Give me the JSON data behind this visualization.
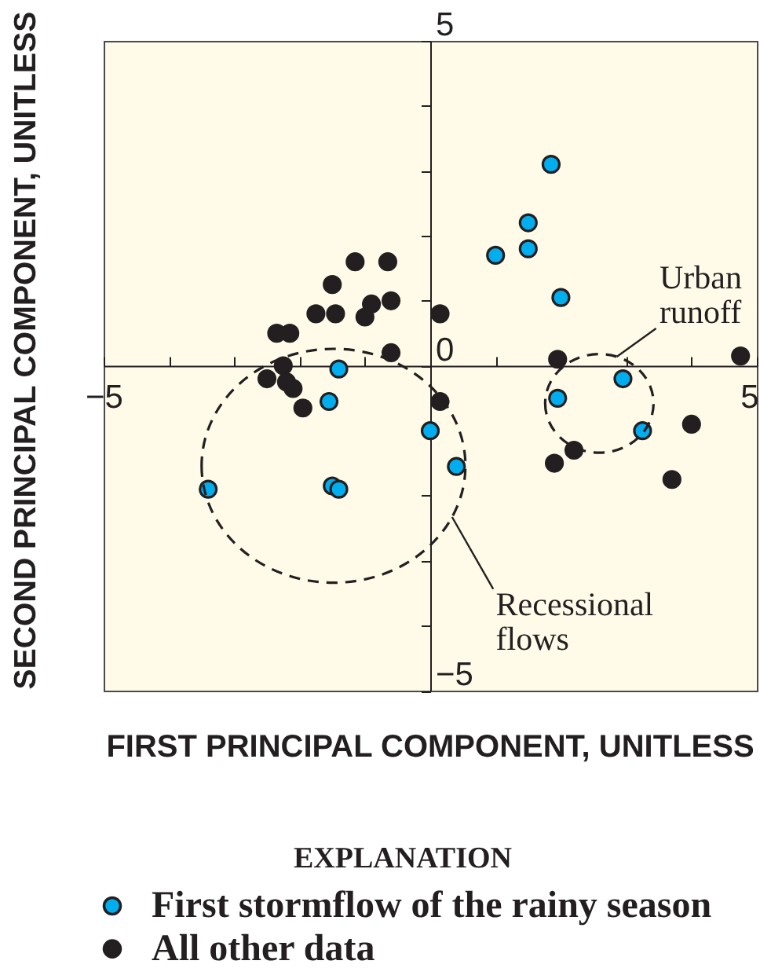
{
  "chart_data": {
    "type": "scatter",
    "xlabel": "FIRST PRINCIPAL COMPONENT, UNITLESS",
    "ylabel": "SECOND PRINCIPAL COMPONENT, UNITLESS",
    "legend_title": "EXPLANATION",
    "legend": "bottom",
    "marker": "circle",
    "xlim": [
      -5,
      5
    ],
    "ylim": [
      -5,
      5
    ],
    "xticks": [
      -5,
      {
        "value": -4,
        "label": null
      },
      {
        "value": -3,
        "label": null
      },
      {
        "value": -2,
        "label": null
      },
      {
        "value": -1,
        "label": null
      },
      {
        "value": 1,
        "label": null
      },
      {
        "value": 2,
        "label": null
      },
      {
        "value": 3,
        "label": null
      },
      {
        "value": 4,
        "label": null
      },
      5
    ],
    "yticks": [
      -5,
      {
        "value": -4,
        "label": null
      },
      {
        "value": -3,
        "label": null
      },
      {
        "value": -2,
        "label": null
      },
      {
        "value": -1,
        "label": null
      },
      0,
      {
        "value": 1,
        "label": null
      },
      {
        "value": 2,
        "label": null
      },
      {
        "value": 3,
        "label": null
      },
      {
        "value": 4,
        "label": null
      },
      5
    ],
    "series": [
      {
        "name": "First stormflow of the rainy season",
        "color": "#00aeef",
        "x": [
          -1.4,
          -1.55,
          0.0,
          -3.4,
          -1.5,
          -1.4,
          0.4,
          2.95,
          1.95,
          3.25,
          1.85,
          1.5,
          1.5,
          1.0,
          2.0
        ],
        "values": [
          -0.05,
          -0.55,
          -1.0,
          -1.9,
          -1.85,
          -1.9,
          -1.55,
          -0.2,
          -0.5,
          -1.0,
          3.1,
          2.2,
          1.8,
          1.7,
          1.05
        ]
      },
      {
        "name": "All other data",
        "color": "#231f20",
        "x": [
          -1.15,
          -0.65,
          -1.5,
          -1.75,
          -1.45,
          -0.9,
          -1.0,
          -0.6,
          -2.35,
          -2.15,
          -0.6,
          -2.25,
          0.15,
          -2.5,
          -2.2,
          -2.1,
          -1.95,
          0.15,
          1.95,
          4.0,
          2.2,
          1.9,
          3.7,
          4.75
        ],
        "values": [
          1.6,
          1.6,
          1.25,
          0.8,
          0.8,
          0.95,
          0.75,
          1.0,
          0.5,
          0.5,
          0.2,
          0.0,
          0.8,
          -0.2,
          -0.25,
          -0.35,
          -0.65,
          -0.55,
          0.1,
          -0.9,
          -1.3,
          -1.5,
          -1.75,
          0.15
        ]
      }
    ],
    "annotations": [
      "Urban runoff",
      "Recessional flows"
    ]
  }
}
